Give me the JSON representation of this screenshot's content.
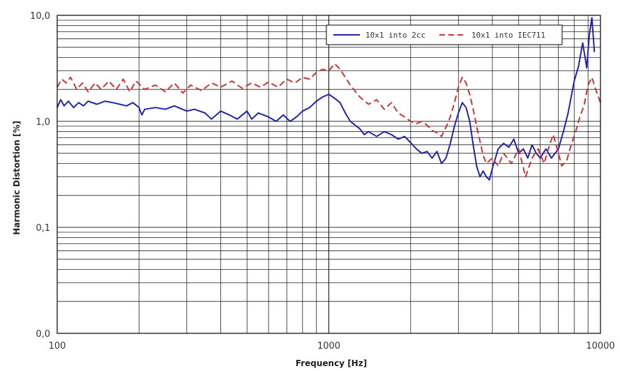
{
  "chart_data": {
    "type": "line",
    "xlabel": "Frequency [Hz]",
    "ylabel": "Harmonic Distortion [%]",
    "x_scale": "log",
    "y_scale": "log",
    "xlim": [
      100,
      10000
    ],
    "ylim": [
      0.01,
      10
    ],
    "grid": true,
    "legend_position": "top-right",
    "x_tick_labels": [
      {
        "value": 100,
        "label": "100"
      },
      {
        "value": 1000,
        "label": "1000"
      },
      {
        "value": 10000,
        "label": "10000"
      }
    ],
    "y_tick_labels": [
      {
        "value": 0.01,
        "label": "0,0"
      },
      {
        "value": 0.1,
        "label": "0,1"
      },
      {
        "value": 1,
        "label": "1,0"
      },
      {
        "value": 10,
        "label": "10,0"
      }
    ],
    "series": [
      {
        "name": "10x1 into 2cc",
        "color": "#2222aa",
        "dash": "solid",
        "points": [
          [
            100,
            1.35
          ],
          [
            103,
            1.6
          ],
          [
            106,
            1.4
          ],
          [
            110,
            1.55
          ],
          [
            115,
            1.35
          ],
          [
            120,
            1.5
          ],
          [
            125,
            1.4
          ],
          [
            130,
            1.55
          ],
          [
            140,
            1.45
          ],
          [
            150,
            1.55
          ],
          [
            160,
            1.5
          ],
          [
            170,
            1.45
          ],
          [
            180,
            1.4
          ],
          [
            190,
            1.5
          ],
          [
            200,
            1.35
          ],
          [
            205,
            1.15
          ],
          [
            210,
            1.3
          ],
          [
            230,
            1.35
          ],
          [
            250,
            1.3
          ],
          [
            270,
            1.4
          ],
          [
            300,
            1.25
          ],
          [
            320,
            1.3
          ],
          [
            350,
            1.2
          ],
          [
            370,
            1.05
          ],
          [
            400,
            1.25
          ],
          [
            430,
            1.15
          ],
          [
            460,
            1.05
          ],
          [
            500,
            1.25
          ],
          [
            520,
            1.05
          ],
          [
            550,
            1.2
          ],
          [
            600,
            1.1
          ],
          [
            640,
            1.0
          ],
          [
            680,
            1.15
          ],
          [
            720,
            1.0
          ],
          [
            760,
            1.1
          ],
          [
            800,
            1.25
          ],
          [
            850,
            1.35
          ],
          [
            900,
            1.55
          ],
          [
            950,
            1.7
          ],
          [
            1000,
            1.8
          ],
          [
            1050,
            1.65
          ],
          [
            1100,
            1.5
          ],
          [
            1150,
            1.2
          ],
          [
            1200,
            1.0
          ],
          [
            1250,
            0.92
          ],
          [
            1300,
            0.85
          ],
          [
            1350,
            0.75
          ],
          [
            1400,
            0.8
          ],
          [
            1500,
            0.72
          ],
          [
            1600,
            0.8
          ],
          [
            1700,
            0.75
          ],
          [
            1800,
            0.68
          ],
          [
            1900,
            0.72
          ],
          [
            2000,
            0.63
          ],
          [
            2100,
            0.55
          ],
          [
            2200,
            0.5
          ],
          [
            2300,
            0.52
          ],
          [
            2400,
            0.45
          ],
          [
            2500,
            0.52
          ],
          [
            2600,
            0.4
          ],
          [
            2700,
            0.45
          ],
          [
            2800,
            0.62
          ],
          [
            2900,
            0.9
          ],
          [
            3000,
            1.2
          ],
          [
            3100,
            1.5
          ],
          [
            3200,
            1.35
          ],
          [
            3300,
            1.0
          ],
          [
            3400,
            0.6
          ],
          [
            3500,
            0.38
          ],
          [
            3600,
            0.3
          ],
          [
            3700,
            0.34
          ],
          [
            3800,
            0.3
          ],
          [
            3900,
            0.28
          ],
          [
            4000,
            0.36
          ],
          [
            4200,
            0.55
          ],
          [
            4400,
            0.62
          ],
          [
            4600,
            0.57
          ],
          [
            4800,
            0.68
          ],
          [
            5000,
            0.5
          ],
          [
            5200,
            0.55
          ],
          [
            5400,
            0.45
          ],
          [
            5600,
            0.6
          ],
          [
            5800,
            0.5
          ],
          [
            6000,
            0.45
          ],
          [
            6300,
            0.55
          ],
          [
            6600,
            0.45
          ],
          [
            7000,
            0.55
          ],
          [
            7300,
            0.8
          ],
          [
            7600,
            1.2
          ],
          [
            8000,
            2.4
          ],
          [
            8300,
            3.3
          ],
          [
            8600,
            5.5
          ],
          [
            8900,
            3.2
          ],
          [
            9100,
            6.5
          ],
          [
            9300,
            9.5
          ],
          [
            9500,
            4.5
          ]
        ]
      },
      {
        "name": "10x1 into IEC711",
        "color": "#cc3333",
        "dash": "dashed",
        "points": [
          [
            100,
            2.1
          ],
          [
            104,
            2.5
          ],
          [
            108,
            2.3
          ],
          [
            112,
            2.6
          ],
          [
            118,
            2.0
          ],
          [
            124,
            2.3
          ],
          [
            130,
            1.9
          ],
          [
            138,
            2.3
          ],
          [
            145,
            2.0
          ],
          [
            155,
            2.4
          ],
          [
            165,
            2.0
          ],
          [
            175,
            2.5
          ],
          [
            185,
            1.9
          ],
          [
            195,
            2.4
          ],
          [
            210,
            2.0
          ],
          [
            230,
            2.2
          ],
          [
            250,
            1.9
          ],
          [
            270,
            2.3
          ],
          [
            290,
            1.85
          ],
          [
            310,
            2.2
          ],
          [
            340,
            1.95
          ],
          [
            370,
            2.3
          ],
          [
            400,
            2.1
          ],
          [
            440,
            2.4
          ],
          [
            480,
            2.05
          ],
          [
            520,
            2.3
          ],
          [
            560,
            2.1
          ],
          [
            600,
            2.35
          ],
          [
            650,
            2.1
          ],
          [
            700,
            2.5
          ],
          [
            750,
            2.3
          ],
          [
            800,
            2.6
          ],
          [
            850,
            2.5
          ],
          [
            900,
            2.9
          ],
          [
            950,
            3.1
          ],
          [
            1000,
            3.0
          ],
          [
            1050,
            3.5
          ],
          [
            1100,
            3.1
          ],
          [
            1150,
            2.6
          ],
          [
            1200,
            2.2
          ],
          [
            1300,
            1.7
          ],
          [
            1400,
            1.45
          ],
          [
            1500,
            1.6
          ],
          [
            1600,
            1.3
          ],
          [
            1700,
            1.5
          ],
          [
            1800,
            1.2
          ],
          [
            1900,
            1.1
          ],
          [
            2000,
            1.0
          ],
          [
            2100,
            0.95
          ],
          [
            2200,
            1.0
          ],
          [
            2300,
            0.92
          ],
          [
            2400,
            0.82
          ],
          [
            2500,
            0.78
          ],
          [
            2600,
            0.72
          ],
          [
            2700,
            0.88
          ],
          [
            2800,
            1.1
          ],
          [
            2900,
            1.5
          ],
          [
            3000,
            2.1
          ],
          [
            3100,
            2.6
          ],
          [
            3200,
            2.3
          ],
          [
            3300,
            1.8
          ],
          [
            3400,
            1.3
          ],
          [
            3500,
            0.9
          ],
          [
            3600,
            0.65
          ],
          [
            3700,
            0.48
          ],
          [
            3800,
            0.4
          ],
          [
            4000,
            0.45
          ],
          [
            4200,
            0.38
          ],
          [
            4400,
            0.5
          ],
          [
            4700,
            0.4
          ],
          [
            5000,
            0.55
          ],
          [
            5300,
            0.3
          ],
          [
            5600,
            0.45
          ],
          [
            5900,
            0.55
          ],
          [
            6200,
            0.4
          ],
          [
            6500,
            0.6
          ],
          [
            6700,
            0.75
          ],
          [
            7000,
            0.5
          ],
          [
            7200,
            0.38
          ],
          [
            7500,
            0.42
          ],
          [
            7800,
            0.6
          ],
          [
            8100,
            0.8
          ],
          [
            8400,
            1.1
          ],
          [
            8700,
            1.4
          ],
          [
            9000,
            2.2
          ],
          [
            9300,
            2.6
          ],
          [
            9600,
            2.0
          ],
          [
            10000,
            1.5
          ]
        ]
      }
    ]
  }
}
